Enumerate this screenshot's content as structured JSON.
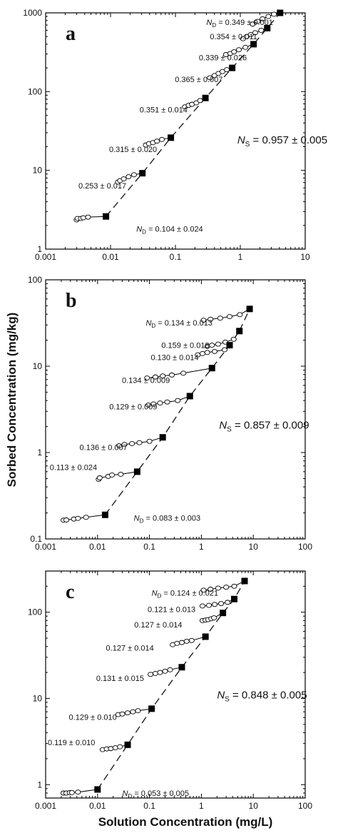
{
  "figure": {
    "ylabel": "Sorbed Concentration (mg/kg)",
    "xlabel": "Solution Concentration (mg/L)"
  },
  "chart_data": [
    {
      "type": "scatter",
      "panel": "a",
      "x_scale": "log",
      "y_scale": "log",
      "xlim": [
        0.001,
        10
      ],
      "ylim": [
        1,
        1000
      ],
      "x_ticks": [
        "0.001",
        "0.01",
        "0.1",
        "1",
        "10"
      ],
      "y_ticks": [
        "1",
        "10",
        "100",
        "1000"
      ],
      "grid": false,
      "ns_label": "0.957 ± 0.005",
      "solid_points": [
        [
          0.0085,
          2.6
        ],
        [
          0.031,
          9.2
        ],
        [
          0.085,
          26
        ],
        [
          0.29,
          83
        ],
        [
          0.75,
          200
        ],
        [
          1.6,
          400
        ],
        [
          2.6,
          640
        ],
        [
          4.1,
          1000
        ]
      ],
      "segments": [
        {
          "nd_label": "0.104 ± 0.024",
          "nd_prefix": true,
          "label_at": [
            0.025,
            1.82
          ],
          "points": [
            [
              0.003,
              2.35
            ],
            [
              0.0031,
              2.45
            ],
            [
              0.0035,
              2.45
            ],
            [
              0.0038,
              2.5
            ],
            [
              0.0045,
              2.55
            ]
          ]
        },
        {
          "nd_label": "0.253 ± 0.017",
          "nd_prefix": false,
          "label_at": [
            0.0032,
            6.4
          ],
          "points": [
            [
              0.013,
              7.1
            ],
            [
              0.014,
              7.4
            ],
            [
              0.016,
              7.8
            ],
            [
              0.019,
              8.3
            ],
            [
              0.023,
              8.8
            ]
          ]
        },
        {
          "nd_label": "0.315 ± 0.020",
          "nd_prefix": false,
          "label_at": [
            0.0095,
            18.5
          ],
          "points": [
            [
              0.035,
              21
            ],
            [
              0.039,
              21.8
            ],
            [
              0.045,
              22.5
            ],
            [
              0.052,
              23.5
            ],
            [
              0.062,
              24.7
            ]
          ]
        },
        {
          "nd_label": "0.351 ± 0.014",
          "nd_prefix": false,
          "label_at": [
            0.028,
            59
          ],
          "points": [
            [
              0.14,
              64
            ],
            [
              0.16,
              67
            ],
            [
              0.18,
              69
            ],
            [
              0.21,
              72
            ],
            [
              0.24,
              77
            ]
          ]
        },
        {
          "nd_label": "0.365 ± 0.007",
          "nd_prefix": false,
          "label_at": [
            0.098,
            143
          ],
          "points": [
            [
              0.34,
              150
            ],
            [
              0.4,
              160
            ],
            [
              0.46,
              170
            ],
            [
              0.53,
              180
            ],
            [
              0.62,
              190
            ]
          ]
        },
        {
          "nd_label": "0.339 ± 0.026",
          "nd_prefix": false,
          "label_at": [
            0.23,
            270
          ],
          "points": [
            [
              0.6,
              295
            ],
            [
              0.7,
              305
            ],
            [
              0.8,
              320
            ],
            [
              0.95,
              340
            ],
            [
              1.2,
              365
            ]
          ]
        },
        {
          "nd_label": "0.354 ± 0.011",
          "nd_prefix": false,
          "label_at": [
            0.34,
            500
          ],
          "points": [
            [
              1.1,
              470
            ],
            [
              1.25,
              500
            ],
            [
              1.45,
              530
            ],
            [
              1.7,
              560
            ],
            [
              2.1,
              600
            ]
          ]
        },
        {
          "nd_label": "0.349 ± 0.001",
          "nd_prefix": true,
          "label_at": [
            0.3,
            760
          ],
          "points": [
            [
              1.55,
              720
            ],
            [
              1.85,
              780
            ],
            [
              2.2,
              840
            ],
            [
              2.7,
              900
            ],
            [
              3.3,
              960
            ]
          ]
        }
      ]
    },
    {
      "type": "scatter",
      "panel": "b",
      "x_scale": "log",
      "y_scale": "log",
      "xlim": [
        0.001,
        100
      ],
      "ylim": [
        0.1,
        100
      ],
      "x_ticks": [
        "0.001",
        "0.01",
        "0.1",
        "1",
        "10",
        "100"
      ],
      "y_ticks": [
        "0.1",
        "1",
        "10",
        "100"
      ],
      "grid": false,
      "ns_label": "0.857 ± 0.009",
      "solid_points": [
        [
          0.014,
          0.19
        ],
        [
          0.058,
          0.6
        ],
        [
          0.18,
          1.5
        ],
        [
          0.6,
          4.5
        ],
        [
          1.6,
          9.5
        ],
        [
          3.5,
          17.5
        ],
        [
          5.4,
          25.5
        ],
        [
          8.5,
          46
        ]
      ],
      "segments": [
        {
          "nd_label": "0.083 ± 0.003",
          "nd_prefix": true,
          "label_at": [
            0.05,
            0.175
          ],
          "points": [
            [
              0.0022,
              0.165
            ],
            [
              0.0025,
              0.166
            ],
            [
              0.0035,
              0.17
            ],
            [
              0.0042,
              0.173
            ],
            [
              0.006,
              0.178
            ]
          ]
        },
        {
          "nd_label": "0.113 ± 0.024",
          "nd_prefix": false,
          "label_at": [
            0.0012,
            0.68
          ],
          "points": [
            [
              0.0105,
              0.49
            ],
            [
              0.011,
              0.51
            ],
            [
              0.016,
              0.53
            ],
            [
              0.019,
              0.55
            ],
            [
              0.028,
              0.56
            ]
          ]
        },
        {
          "nd_label": "0.136 ± 0.007",
          "nd_prefix": false,
          "label_at": [
            0.0045,
            1.15
          ],
          "points": [
            [
              0.026,
              1.2
            ],
            [
              0.033,
              1.24
            ],
            [
              0.046,
              1.27
            ],
            [
              0.064,
              1.3
            ],
            [
              0.1,
              1.35
            ]
          ]
        },
        {
          "nd_label": "0.129 ± 0.009",
          "nd_prefix": false,
          "label_at": [
            0.0168,
            3.4
          ],
          "points": [
            [
              0.095,
              3.55
            ],
            [
              0.12,
              3.65
            ],
            [
              0.16,
              3.75
            ],
            [
              0.22,
              3.85
            ],
            [
              0.35,
              4.0
            ]
          ]
        },
        {
          "nd_label": "0.134 ± 0.009",
          "nd_prefix": false,
          "label_at": [
            0.0295,
            6.9
          ],
          "points": [
            [
              0.09,
              7.3
            ],
            [
              0.13,
              7.5
            ],
            [
              0.18,
              7.7
            ],
            [
              0.27,
              7.9
            ],
            [
              0.45,
              8.3
            ]
          ]
        },
        {
          "nd_label": "0.130 ± 0.014",
          "nd_prefix": false,
          "label_at": [
            0.106,
            12.7
          ],
          "points": [
            [
              0.85,
              13.5
            ],
            [
              1.05,
              14
            ],
            [
              1.3,
              14.4
            ],
            [
              1.8,
              14.8
            ],
            [
              2.8,
              15.5
            ]
          ]
        },
        {
          "nd_label": "0.159 ± 0.018",
          "nd_prefix": false,
          "label_at": [
            0.17,
            17.5
          ],
          "points": [
            [
              1.3,
              17
            ],
            [
              1.6,
              17.5
            ],
            [
              2.1,
              18
            ],
            [
              2.9,
              19
            ],
            [
              4.2,
              20.5
            ]
          ]
        },
        {
          "nd_label": "0.134 ± 0.013",
          "nd_prefix": true,
          "label_at": [
            0.085,
            32
          ],
          "points": [
            [
              1.1,
              34
            ],
            [
              1.5,
              35
            ],
            [
              2.3,
              36
            ],
            [
              3.5,
              37.5
            ],
            [
              5.5,
              39.5
            ]
          ]
        }
      ]
    },
    {
      "type": "scatter",
      "panel": "c",
      "x_scale": "log",
      "y_scale": "log",
      "xlim": [
        0.001,
        100
      ],
      "ylim": [
        0.7,
        300
      ],
      "x_ticks": [
        "0.001",
        "0.01",
        "0.1",
        "1",
        "10",
        "100"
      ],
      "y_ticks": [
        "1",
        "10",
        "100"
      ],
      "grid": false,
      "ns_label": "0.848 ± 0.005",
      "solid_points": [
        [
          0.01,
          0.88
        ],
        [
          0.038,
          2.9
        ],
        [
          0.11,
          7.6
        ],
        [
          0.42,
          23
        ],
        [
          1.2,
          52
        ],
        [
          2.6,
          98
        ],
        [
          4.3,
          142
        ],
        [
          6.8,
          230
        ]
      ],
      "segments": [
        {
          "nd_label": "0.053 ± 0.005",
          "nd_prefix": true,
          "label_at": [
            0.03,
            0.8
          ],
          "points": [
            [
              0.0022,
              0.8
            ],
            [
              0.0025,
              0.8
            ],
            [
              0.0029,
              0.81
            ],
            [
              0.0032,
              0.81
            ],
            [
              0.0042,
              0.82
            ]
          ]
        },
        {
          "nd_label": "0.119 ± 0.010",
          "nd_prefix": false,
          "label_at": [
            0.0011,
            3.1
          ],
          "points": [
            [
              0.0125,
              2.55
            ],
            [
              0.015,
              2.6
            ],
            [
              0.018,
              2.62
            ],
            [
              0.022,
              2.68
            ],
            [
              0.027,
              2.75
            ]
          ]
        },
        {
          "nd_label": "0.129 ± 0.010",
          "nd_prefix": false,
          "label_at": [
            0.0028,
            6.1
          ],
          "points": [
            [
              0.025,
              6.5
            ],
            [
              0.03,
              6.6
            ],
            [
              0.038,
              6.8
            ],
            [
              0.048,
              7.0
            ],
            [
              0.06,
              7.2
            ]
          ]
        },
        {
          "nd_label": "0.131 ± 0.015",
          "nd_prefix": false,
          "label_at": [
            0.0094,
            17.2
          ],
          "points": [
            [
              0.105,
              19
            ],
            [
              0.13,
              19.5
            ],
            [
              0.16,
              20
            ],
            [
              0.2,
              20.7
            ],
            [
              0.25,
              21.5
            ]
          ]
        },
        {
          "nd_label": "0.127 ± 0.014",
          "nd_prefix": false,
          "label_at": [
            0.0145,
            38.5
          ],
          "points": [
            [
              0.28,
              42
            ],
            [
              0.34,
              43.5
            ],
            [
              0.42,
              44.5
            ],
            [
              0.52,
              46
            ],
            [
              0.65,
              47
            ]
          ]
        },
        {
          "nd_label": "0.127 ± 0.014",
          "nd_prefix": false,
          "label_at": [
            0.051,
            72
          ],
          "points": [
            [
              1.05,
              80
            ],
            [
              1.2,
              81
            ],
            [
              1.35,
              82
            ],
            [
              1.55,
              84
            ],
            [
              1.75,
              86
            ]
          ]
        },
        {
          "nd_label": "0.121 ± 0.013",
          "nd_prefix": false,
          "label_at": [
            0.092,
            108
          ],
          "points": [
            [
              1.05,
              118
            ],
            [
              1.4,
              120
            ],
            [
              1.8,
              123
            ],
            [
              2.4,
              126
            ],
            [
              3.2,
              130
            ]
          ]
        },
        {
          "nd_label": "0.124 ± 0.021",
          "nd_prefix": true,
          "label_at": [
            0.11,
            167
          ],
          "points": [
            [
              1.1,
              180
            ],
            [
              1.5,
              185
            ],
            [
              2.1,
              190
            ],
            [
              3.0,
              195
            ],
            [
              4.3,
              200
            ]
          ]
        }
      ]
    }
  ]
}
